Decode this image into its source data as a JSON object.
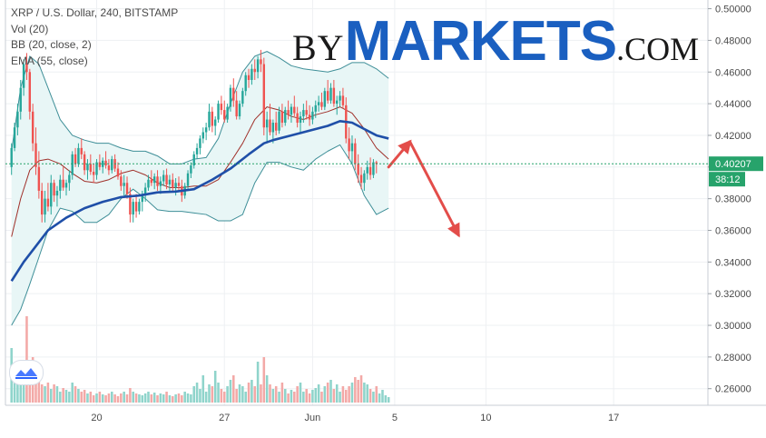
{
  "legend": {
    "line1": "XRP / U.S. Dollar, 240, BITSTAMP",
    "line2": "Vol (20)",
    "line3": "BB (20, close, 2)",
    "line4": "EMA (55, close)"
  },
  "brand": {
    "by": "BY",
    "markets": "MARKETS",
    "com": ".COM"
  },
  "tv_logo": {
    "icon": "tradingview-wave-icon"
  },
  "colors": {
    "up": "#26a69a",
    "down": "#ef5350",
    "vol_up": "#8fd4cb",
    "vol_down": "#f3a9a7",
    "bb_band": "#3f8f98",
    "bb_fill": "#e8f6f6",
    "bb_basis": "#a0302a",
    "ema": "#1f4fa8",
    "arrow": "#e34d4a",
    "price_label": "#27a36b"
  },
  "chart_data": {
    "type": "candlestick",
    "symbol": "XRP / U.S. Dollar",
    "timeframe": "240",
    "exchange": "BITSTAMP",
    "indicators": [
      "Vol (20)",
      "BB (20, close, 2)",
      "EMA (55, close)"
    ],
    "y_axis": {
      "ticks": [
        "0.50000",
        "0.48000",
        "0.46000",
        "0.44000",
        "0.42000",
        "0.40000",
        "0.38000",
        "0.36000",
        "0.34000",
        "0.32000",
        "0.30000",
        "0.28000",
        "0.26000"
      ],
      "range": [
        0.2495,
        0.5055
      ]
    },
    "x_axis": {
      "ticks": [
        {
          "label": "20",
          "index": 28
        },
        {
          "label": "27",
          "index": 70
        },
        {
          "label": "Jun",
          "index": 99
        },
        {
          "label": "5",
          "index": 126
        },
        {
          "label": "10",
          "index": 156
        },
        {
          "label": "17",
          "index": 198
        }
      ],
      "range_index": [
        -2,
        229
      ]
    },
    "current_price": {
      "value": 0.40207,
      "label": "0.40207",
      "countdown": "38:12"
    },
    "candles": [
      [
        0.4,
        0.415,
        0.395,
        0.412
      ],
      [
        0.412,
        0.428,
        0.41,
        0.425
      ],
      [
        0.425,
        0.44,
        0.42,
        0.435
      ],
      [
        0.435,
        0.455,
        0.43,
        0.45
      ],
      [
        0.45,
        0.468,
        0.445,
        0.465
      ],
      [
        0.465,
        0.472,
        0.455,
        0.46
      ],
      [
        0.46,
        0.462,
        0.43,
        0.435
      ],
      [
        0.435,
        0.44,
        0.41,
        0.415
      ],
      [
        0.415,
        0.425,
        0.395,
        0.4
      ],
      [
        0.4,
        0.41,
        0.38,
        0.385
      ],
      [
        0.385,
        0.39,
        0.365,
        0.37
      ],
      [
        0.37,
        0.385,
        0.365,
        0.38
      ],
      [
        0.38,
        0.39,
        0.372,
        0.375
      ],
      [
        0.375,
        0.395,
        0.37,
        0.39
      ],
      [
        0.39,
        0.392,
        0.378,
        0.382
      ],
      [
        0.382,
        0.388,
        0.375,
        0.385
      ],
      [
        0.385,
        0.395,
        0.38,
        0.392
      ],
      [
        0.392,
        0.4,
        0.385,
        0.387
      ],
      [
        0.387,
        0.392,
        0.382,
        0.39
      ],
      [
        0.39,
        0.398,
        0.385,
        0.395
      ],
      [
        0.395,
        0.41,
        0.392,
        0.408
      ],
      [
        0.408,
        0.412,
        0.4,
        0.402
      ],
      [
        0.402,
        0.415,
        0.4,
        0.412
      ],
      [
        0.412,
        0.418,
        0.405,
        0.408
      ],
      [
        0.408,
        0.41,
        0.395,
        0.398
      ],
      [
        0.398,
        0.405,
        0.392,
        0.402
      ],
      [
        0.402,
        0.408,
        0.395,
        0.397
      ],
      [
        0.397,
        0.402,
        0.39,
        0.395
      ],
      [
        0.395,
        0.405,
        0.392,
        0.403
      ],
      [
        0.403,
        0.408,
        0.398,
        0.4
      ],
      [
        0.4,
        0.406,
        0.396,
        0.404
      ],
      [
        0.404,
        0.41,
        0.399,
        0.401
      ],
      [
        0.401,
        0.405,
        0.395,
        0.398
      ],
      [
        0.398,
        0.407,
        0.396,
        0.405
      ],
      [
        0.405,
        0.408,
        0.397,
        0.399
      ],
      [
        0.399,
        0.403,
        0.392,
        0.394
      ],
      [
        0.394,
        0.398,
        0.385,
        0.388
      ],
      [
        0.388,
        0.395,
        0.382,
        0.39
      ],
      [
        0.39,
        0.394,
        0.38,
        0.383
      ],
      [
        0.383,
        0.387,
        0.365,
        0.37
      ],
      [
        0.37,
        0.38,
        0.365,
        0.378
      ],
      [
        0.378,
        0.383,
        0.368,
        0.372
      ],
      [
        0.372,
        0.38,
        0.37,
        0.378
      ],
      [
        0.378,
        0.385,
        0.372,
        0.382
      ],
      [
        0.382,
        0.39,
        0.378,
        0.387
      ],
      [
        0.387,
        0.395,
        0.385,
        0.392
      ],
      [
        0.392,
        0.398,
        0.388,
        0.39
      ],
      [
        0.39,
        0.396,
        0.386,
        0.394
      ],
      [
        0.394,
        0.398,
        0.385,
        0.388
      ],
      [
        0.388,
        0.394,
        0.383,
        0.391
      ],
      [
        0.391,
        0.398,
        0.388,
        0.395
      ],
      [
        0.395,
        0.399,
        0.386,
        0.389
      ],
      [
        0.389,
        0.395,
        0.384,
        0.392
      ],
      [
        0.392,
        0.396,
        0.385,
        0.387
      ],
      [
        0.387,
        0.393,
        0.382,
        0.39
      ],
      [
        0.39,
        0.394,
        0.385,
        0.388
      ],
      [
        0.388,
        0.392,
        0.378,
        0.382
      ],
      [
        0.382,
        0.39,
        0.38,
        0.388
      ],
      [
        0.388,
        0.398,
        0.386,
        0.396
      ],
      [
        0.396,
        0.403,
        0.393,
        0.401
      ],
      [
        0.401,
        0.41,
        0.399,
        0.408
      ],
      [
        0.408,
        0.415,
        0.405,
        0.412
      ],
      [
        0.412,
        0.42,
        0.408,
        0.418
      ],
      [
        0.418,
        0.425,
        0.415,
        0.422
      ],
      [
        0.422,
        0.428,
        0.417,
        0.425
      ],
      [
        0.425,
        0.44,
        0.423,
        0.435
      ],
      [
        0.435,
        0.438,
        0.422,
        0.426
      ],
      [
        0.426,
        0.432,
        0.42,
        0.43
      ],
      [
        0.43,
        0.442,
        0.428,
        0.44
      ],
      [
        0.44,
        0.445,
        0.433,
        0.436
      ],
      [
        0.436,
        0.442,
        0.428,
        0.43
      ],
      [
        0.43,
        0.44,
        0.428,
        0.438
      ],
      [
        0.438,
        0.452,
        0.435,
        0.45
      ],
      [
        0.45,
        0.456,
        0.438,
        0.442
      ],
      [
        0.442,
        0.448,
        0.43,
        0.432
      ],
      [
        0.432,
        0.442,
        0.43,
        0.44
      ],
      [
        0.44,
        0.45,
        0.438,
        0.448
      ],
      [
        0.448,
        0.46,
        0.445,
        0.458
      ],
      [
        0.458,
        0.462,
        0.45,
        0.455
      ],
      [
        0.455,
        0.465,
        0.452,
        0.462
      ],
      [
        0.462,
        0.468,
        0.455,
        0.46
      ],
      [
        0.46,
        0.47,
        0.456,
        0.468
      ],
      [
        0.468,
        0.474,
        0.46,
        0.465
      ],
      [
        0.465,
        0.469,
        0.42,
        0.425
      ],
      [
        0.425,
        0.435,
        0.415,
        0.43
      ],
      [
        0.43,
        0.44,
        0.42,
        0.422
      ],
      [
        0.422,
        0.43,
        0.415,
        0.428
      ],
      [
        0.428,
        0.435,
        0.42,
        0.423
      ],
      [
        0.423,
        0.438,
        0.421,
        0.435
      ],
      [
        0.435,
        0.44,
        0.425,
        0.428
      ],
      [
        0.428,
        0.438,
        0.426,
        0.436
      ],
      [
        0.436,
        0.442,
        0.43,
        0.433
      ],
      [
        0.433,
        0.44,
        0.428,
        0.438
      ],
      [
        0.438,
        0.445,
        0.432,
        0.434
      ],
      [
        0.434,
        0.438,
        0.425,
        0.428
      ],
      [
        0.428,
        0.435,
        0.422,
        0.432
      ],
      [
        0.432,
        0.44,
        0.428,
        0.436
      ],
      [
        0.436,
        0.442,
        0.43,
        0.433
      ],
      [
        0.433,
        0.439,
        0.426,
        0.43
      ],
      [
        0.43,
        0.438,
        0.427,
        0.435
      ],
      [
        0.435,
        0.442,
        0.431,
        0.439
      ],
      [
        0.439,
        0.445,
        0.435,
        0.441
      ],
      [
        0.441,
        0.447,
        0.436,
        0.438
      ],
      [
        0.438,
        0.45,
        0.436,
        0.448
      ],
      [
        0.448,
        0.455,
        0.44,
        0.442
      ],
      [
        0.442,
        0.453,
        0.44,
        0.45
      ],
      [
        0.45,
        0.455,
        0.438,
        0.44
      ],
      [
        0.44,
        0.445,
        0.433,
        0.442
      ],
      [
        0.442,
        0.448,
        0.438,
        0.445
      ],
      [
        0.445,
        0.45,
        0.437,
        0.439
      ],
      [
        0.439,
        0.444,
        0.415,
        0.418
      ],
      [
        0.418,
        0.425,
        0.405,
        0.41
      ],
      [
        0.41,
        0.42,
        0.402,
        0.415
      ],
      [
        0.415,
        0.418,
        0.398,
        0.402
      ],
      [
        0.402,
        0.408,
        0.39,
        0.395
      ],
      [
        0.395,
        0.4,
        0.386,
        0.39
      ],
      [
        0.39,
        0.398,
        0.385,
        0.396
      ],
      [
        0.396,
        0.404,
        0.392,
        0.4
      ],
      [
        0.4,
        0.406,
        0.392,
        0.395
      ],
      [
        0.395,
        0.405,
        0.393,
        0.403
      ],
      [
        0.403,
        0.404,
        0.396,
        0.4021
      ]
    ],
    "ema_55": [
      [
        0,
        0.328
      ],
      [
        4,
        0.34
      ],
      [
        8,
        0.35
      ],
      [
        12,
        0.36
      ],
      [
        18,
        0.368
      ],
      [
        24,
        0.374
      ],
      [
        30,
        0.378
      ],
      [
        36,
        0.381
      ],
      [
        42,
        0.382
      ],
      [
        48,
        0.384
      ],
      [
        54,
        0.3845
      ],
      [
        60,
        0.386
      ],
      [
        66,
        0.392
      ],
      [
        72,
        0.399
      ],
      [
        78,
        0.408
      ],
      [
        83,
        0.415
      ],
      [
        86,
        0.417
      ],
      [
        92,
        0.42
      ],
      [
        98,
        0.423
      ],
      [
        104,
        0.426
      ],
      [
        108,
        0.429
      ],
      [
        112,
        0.428
      ],
      [
        116,
        0.424
      ],
      [
        120,
        0.42
      ],
      [
        124,
        0.418
      ]
    ],
    "bb_basis": [
      [
        0,
        0.356
      ],
      [
        3,
        0.38
      ],
      [
        6,
        0.398
      ],
      [
        9,
        0.404
      ],
      [
        12,
        0.405
      ],
      [
        16,
        0.402
      ],
      [
        20,
        0.396
      ],
      [
        24,
        0.391
      ],
      [
        28,
        0.39
      ],
      [
        32,
        0.392
      ],
      [
        36,
        0.396
      ],
      [
        40,
        0.398
      ],
      [
        44,
        0.395
      ],
      [
        48,
        0.39
      ],
      [
        52,
        0.387
      ],
      [
        56,
        0.387
      ],
      [
        60,
        0.388
      ],
      [
        64,
        0.388
      ],
      [
        68,
        0.392
      ],
      [
        72,
        0.403
      ],
      [
        76,
        0.415
      ],
      [
        80,
        0.43
      ],
      [
        84,
        0.438
      ],
      [
        88,
        0.436
      ],
      [
        92,
        0.432
      ],
      [
        96,
        0.43
      ],
      [
        100,
        0.433
      ],
      [
        104,
        0.435
      ],
      [
        108,
        0.438
      ],
      [
        112,
        0.434
      ],
      [
        116,
        0.424
      ],
      [
        120,
        0.412
      ],
      [
        124,
        0.405
      ]
    ],
    "bb_upper": [
      [
        0,
        0.41
      ],
      [
        3,
        0.45
      ],
      [
        6,
        0.47
      ],
      [
        9,
        0.465
      ],
      [
        12,
        0.45
      ],
      [
        16,
        0.43
      ],
      [
        20,
        0.42
      ],
      [
        24,
        0.417
      ],
      [
        28,
        0.415
      ],
      [
        32,
        0.415
      ],
      [
        36,
        0.412
      ],
      [
        40,
        0.41
      ],
      [
        44,
        0.41
      ],
      [
        48,
        0.407
      ],
      [
        52,
        0.402
      ],
      [
        56,
        0.402
      ],
      [
        60,
        0.405
      ],
      [
        64,
        0.406
      ],
      [
        68,
        0.418
      ],
      [
        72,
        0.44
      ],
      [
        76,
        0.46
      ],
      [
        80,
        0.47
      ],
      [
        84,
        0.473
      ],
      [
        88,
        0.469
      ],
      [
        92,
        0.464
      ],
      [
        96,
        0.462
      ],
      [
        100,
        0.461
      ],
      [
        104,
        0.46
      ],
      [
        108,
        0.462
      ],
      [
        112,
        0.466
      ],
      [
        116,
        0.466
      ],
      [
        120,
        0.462
      ],
      [
        124,
        0.456
      ]
    ],
    "bb_lower": [
      [
        0,
        0.3
      ],
      [
        3,
        0.31
      ],
      [
        6,
        0.326
      ],
      [
        9,
        0.343
      ],
      [
        12,
        0.36
      ],
      [
        16,
        0.374
      ],
      [
        20,
        0.372
      ],
      [
        24,
        0.365
      ],
      [
        28,
        0.365
      ],
      [
        32,
        0.37
      ],
      [
        36,
        0.38
      ],
      [
        40,
        0.386
      ],
      [
        44,
        0.38
      ],
      [
        48,
        0.373
      ],
      [
        52,
        0.372
      ],
      [
        56,
        0.372
      ],
      [
        60,
        0.371
      ],
      [
        64,
        0.37
      ],
      [
        68,
        0.366
      ],
      [
        72,
        0.366
      ],
      [
        76,
        0.37
      ],
      [
        80,
        0.39
      ],
      [
        84,
        0.403
      ],
      [
        88,
        0.403
      ],
      [
        92,
        0.4
      ],
      [
        96,
        0.398
      ],
      [
        100,
        0.405
      ],
      [
        104,
        0.41
      ],
      [
        108,
        0.414
      ],
      [
        112,
        0.402
      ],
      [
        116,
        0.382
      ],
      [
        120,
        0.37
      ],
      [
        124,
        0.374
      ]
    ],
    "volume": [
      0.6,
      0.35,
      0.28,
      0.22,
      0.25,
      0.95,
      0.4,
      0.5,
      0.3,
      0.25,
      0.2,
      0.18,
      0.22,
      0.15,
      0.2,
      0.18,
      0.12,
      0.16,
      0.14,
      0.12,
      0.22,
      0.18,
      0.15,
      0.12,
      0.14,
      0.1,
      0.12,
      0.08,
      0.1,
      0.12,
      0.09,
      0.08,
      0.1,
      0.12,
      0.09,
      0.07,
      0.1,
      0.12,
      0.09,
      0.16,
      0.12,
      0.1,
      0.09,
      0.08,
      0.1,
      0.12,
      0.09,
      0.11,
      0.08,
      0.1,
      0.09,
      0.12,
      0.08,
      0.07,
      0.09,
      0.1,
      0.08,
      0.12,
      0.1,
      0.09,
      0.18,
      0.22,
      0.15,
      0.3,
      0.12,
      0.2,
      0.18,
      0.35,
      0.22,
      0.15,
      0.12,
      0.18,
      0.25,
      0.3,
      0.15,
      0.2,
      0.18,
      0.12,
      0.22,
      0.25,
      0.18,
      0.45,
      0.2,
      0.5,
      0.3,
      0.2,
      0.15,
      0.18,
      0.12,
      0.22,
      0.15,
      0.1,
      0.14,
      0.12,
      0.18,
      0.22,
      0.12,
      0.15,
      0.1,
      0.14,
      0.16,
      0.2,
      0.12,
      0.18,
      0.22,
      0.25,
      0.15,
      0.2,
      0.12,
      0.18,
      0.14,
      0.18,
      0.22,
      0.28,
      0.25,
      0.3,
      0.22,
      0.2,
      0.15,
      0.12,
      0.18,
      0.1,
      0.14,
      0.08,
      0.06
    ],
    "forecast_arrows": [
      {
        "from": [
          124,
          0.4
        ],
        "to": [
          131,
          0.416
        ]
      },
      {
        "from": [
          131,
          0.416
        ],
        "to": [
          147,
          0.357
        ]
      }
    ]
  }
}
